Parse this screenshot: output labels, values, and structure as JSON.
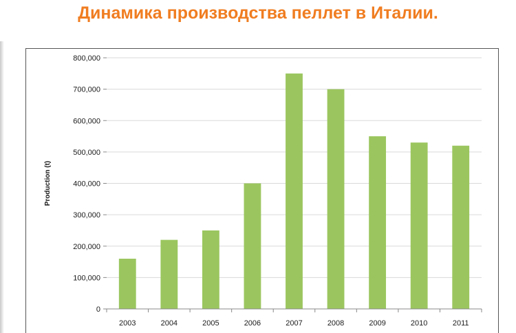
{
  "title": "Динамика производства пеллет в Италии.",
  "colors": {
    "title": "#f07d21",
    "bar": "#9bc65f",
    "grid": "#d9d9d9",
    "axis": "#888888"
  },
  "chart_data": {
    "type": "bar",
    "categories": [
      "2003",
      "2004",
      "2005",
      "2006",
      "2007",
      "2008",
      "2009",
      "2010",
      "2011"
    ],
    "values": [
      160000,
      220000,
      250000,
      400000,
      750000,
      700000,
      550000,
      530000,
      520000
    ],
    "ylabel": "Production (t)",
    "xlabel": "",
    "ylim": [
      0,
      800000
    ],
    "yticks": [
      "0",
      "100,000",
      "200,000",
      "300,000",
      "400,000",
      "500,000",
      "600,000",
      "700,000",
      "800,000"
    ],
    "grid": true,
    "legend": "none"
  }
}
